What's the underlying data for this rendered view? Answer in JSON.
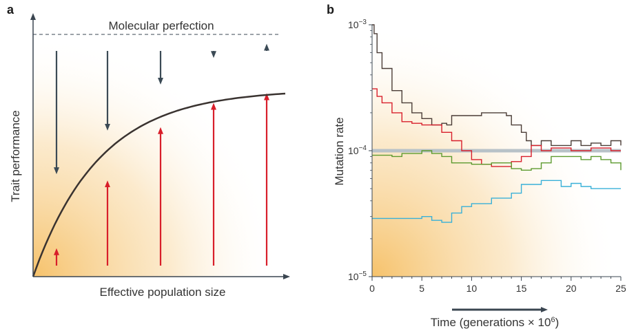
{
  "panel_a": {
    "letter": "a",
    "ceiling_label": "Molecular perfection",
    "xlabel": "Effective population size",
    "ylabel": "Trait performance"
  },
  "panel_b": {
    "letter": "b",
    "xlabel_main": "Time (generations × 10",
    "xlabel_sup": "6",
    "xlabel_close": ")",
    "ylabel": "Mutation rate"
  },
  "colors": {
    "axis": "#3a4550",
    "down_arrow": "#3b4a55",
    "up_arrow": "#d81e2a",
    "curve": "#3a3330",
    "gradient": "#f6c26b",
    "reference": "#b8c2c8",
    "series_dark": "#4a3c36",
    "series_red": "#d81e2a",
    "series_green": "#5c9a2e",
    "series_blue": "#38b0d8"
  },
  "chart_data": [
    {
      "type": "line",
      "panel": "a",
      "curve": "saturating",
      "ceiling": "dashed",
      "arrows": [
        {
          "down_length": 0.58,
          "up_length": 0.12
        },
        {
          "down_length": 0.4,
          "up_length": 0.4
        },
        {
          "down_length": 0.21,
          "up_length": 0.62
        },
        {
          "down_length": 0.1,
          "up_length": 0.72
        },
        {
          "down_length": 0.07,
          "up_length": 0.76
        }
      ]
    },
    {
      "type": "line",
      "panel": "b",
      "x_ticks": [
        "0",
        "5",
        "10",
        "15",
        "20",
        "25"
      ],
      "y_ticks": [
        {
          "base": "10",
          "exp": "−3"
        },
        {
          "base": "10",
          "exp": "−4"
        },
        {
          "base": "10",
          "exp": "−5"
        }
      ],
      "xlim": [
        0,
        25
      ],
      "ylim_log10": [
        -5,
        -3
      ],
      "y_scale": "log",
      "reference_line": {
        "y": 0.0001
      },
      "series": [
        {
          "color_key": "series_dark",
          "points": [
            [
              0,
              0.001
            ],
            [
              0.2,
              0.00085
            ],
            [
              0.5,
              0.0006
            ],
            [
              1,
              0.00045
            ],
            [
              2,
              0.0003
            ],
            [
              3,
              0.00024
            ],
            [
              4,
              0.0002
            ],
            [
              5,
              0.00018
            ],
            [
              6,
              0.00016
            ],
            [
              7,
              0.000165
            ],
            [
              7.5,
              0.00016
            ],
            [
              8,
              0.00019
            ],
            [
              9,
              0.00019
            ],
            [
              10,
              0.00019
            ],
            [
              11,
              0.0002
            ],
            [
              12,
              0.0002
            ],
            [
              13,
              0.0002
            ],
            [
              13.5,
              0.00019
            ],
            [
              14,
              0.00016
            ],
            [
              15,
              0.00014
            ],
            [
              15.5,
              0.00012
            ],
            [
              16,
              0.00011
            ],
            [
              17,
              0.00012
            ],
            [
              18,
              0.00011
            ],
            [
              19,
              0.00011
            ],
            [
              20,
              0.00012
            ],
            [
              21,
              0.00011
            ],
            [
              22,
              0.000115
            ],
            [
              23,
              0.00011
            ],
            [
              24,
              0.00012
            ],
            [
              25,
              0.00011
            ]
          ]
        },
        {
          "color_key": "series_red",
          "points": [
            [
              0,
              0.00031
            ],
            [
              0.5,
              0.00027
            ],
            [
              1,
              0.00024
            ],
            [
              2,
              0.0002
            ],
            [
              3,
              0.00017
            ],
            [
              4,
              0.000165
            ],
            [
              5,
              0.00016
            ],
            [
              6,
              0.00016
            ],
            [
              7,
              0.00014
            ],
            [
              8,
              0.00012
            ],
            [
              9,
              0.0001
            ],
            [
              10,
              8.5e-05
            ],
            [
              11,
              7.8e-05
            ],
            [
              12,
              7.5e-05
            ],
            [
              13,
              7.5e-05
            ],
            [
              14,
              8.2e-05
            ],
            [
              15,
              9e-05
            ],
            [
              16,
              0.00011
            ],
            [
              17,
              0.0001
            ],
            [
              18,
              0.000105
            ],
            [
              20,
              0.0001
            ],
            [
              22,
              0.000105
            ],
            [
              24,
              0.0001
            ],
            [
              25,
              0.0001
            ]
          ]
        },
        {
          "color_key": "series_green",
          "points": [
            [
              0,
              9.2e-05
            ],
            [
              2,
              9e-05
            ],
            [
              3,
              9.5e-05
            ],
            [
              5,
              0.0001
            ],
            [
              6,
              9.5e-05
            ],
            [
              7,
              9e-05
            ],
            [
              8,
              8e-05
            ],
            [
              10,
              7.8e-05
            ],
            [
              12,
              8e-05
            ],
            [
              13.5,
              8e-05
            ],
            [
              14,
              7.2e-05
            ],
            [
              15,
              7e-05
            ],
            [
              16,
              7.2e-05
            ],
            [
              17,
              8e-05
            ],
            [
              18,
              9e-05
            ],
            [
              20,
              9e-05
            ],
            [
              21,
              8.5e-05
            ],
            [
              22,
              9e-05
            ],
            [
              23,
              8.5e-05
            ],
            [
              24,
              8e-05
            ],
            [
              25,
              7e-05
            ]
          ]
        },
        {
          "color_key": "series_blue",
          "points": [
            [
              0,
              2.9e-05
            ],
            [
              3,
              2.9e-05
            ],
            [
              5,
              3e-05
            ],
            [
              6,
              2.8e-05
            ],
            [
              7,
              2.7e-05
            ],
            [
              8,
              3.2e-05
            ],
            [
              9,
              3.6e-05
            ],
            [
              10,
              3.8e-05
            ],
            [
              12,
              4.2e-05
            ],
            [
              14,
              4.6e-05
            ],
            [
              15,
              5.4e-05
            ],
            [
              16,
              5.4e-05
            ],
            [
              17,
              5.8e-05
            ],
            [
              18,
              5.8e-05
            ],
            [
              19,
              5.2e-05
            ],
            [
              20,
              5.5e-05
            ],
            [
              21,
              5.2e-05
            ],
            [
              22,
              5e-05
            ],
            [
              23,
              5e-05
            ],
            [
              25,
              5e-05
            ]
          ]
        }
      ]
    }
  ]
}
